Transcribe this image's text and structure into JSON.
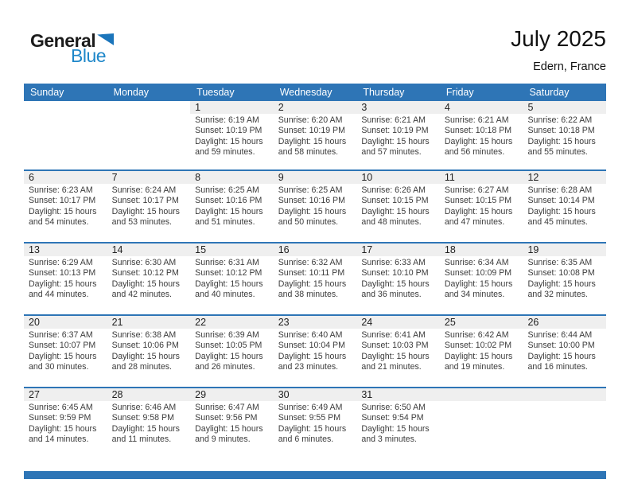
{
  "logo": {
    "part1": "General",
    "part2": "Blue"
  },
  "header": {
    "title": "July 2025",
    "location": "Edern, France"
  },
  "colors": {
    "header_blue": "#2e75b6",
    "logo_blue": "#1e87c9",
    "band_gray": "#efefef",
    "footer_blue": "#2e75b6"
  },
  "calendar": {
    "weekdays": [
      "Sunday",
      "Monday",
      "Tuesday",
      "Wednesday",
      "Thursday",
      "Friday",
      "Saturday"
    ],
    "weeks": [
      [
        {
          "day": "",
          "band": false,
          "lines": []
        },
        {
          "day": "",
          "band": false,
          "lines": []
        },
        {
          "day": "1",
          "band": true,
          "lines": [
            "Sunrise: 6:19 AM",
            "Sunset: 10:19 PM",
            "Daylight: 15 hours and 59 minutes."
          ]
        },
        {
          "day": "2",
          "band": true,
          "lines": [
            "Sunrise: 6:20 AM",
            "Sunset: 10:19 PM",
            "Daylight: 15 hours and 58 minutes."
          ]
        },
        {
          "day": "3",
          "band": true,
          "lines": [
            "Sunrise: 6:21 AM",
            "Sunset: 10:19 PM",
            "Daylight: 15 hours and 57 minutes."
          ]
        },
        {
          "day": "4",
          "band": true,
          "lines": [
            "Sunrise: 6:21 AM",
            "Sunset: 10:18 PM",
            "Daylight: 15 hours and 56 minutes."
          ]
        },
        {
          "day": "5",
          "band": true,
          "lines": [
            "Sunrise: 6:22 AM",
            "Sunset: 10:18 PM",
            "Daylight: 15 hours and 55 minutes."
          ]
        }
      ],
      [
        {
          "day": "6",
          "band": true,
          "lines": [
            "Sunrise: 6:23 AM",
            "Sunset: 10:17 PM",
            "Daylight: 15 hours and 54 minutes."
          ]
        },
        {
          "day": "7",
          "band": true,
          "lines": [
            "Sunrise: 6:24 AM",
            "Sunset: 10:17 PM",
            "Daylight: 15 hours and 53 minutes."
          ]
        },
        {
          "day": "8",
          "band": true,
          "lines": [
            "Sunrise: 6:25 AM",
            "Sunset: 10:16 PM",
            "Daylight: 15 hours and 51 minutes."
          ]
        },
        {
          "day": "9",
          "band": true,
          "lines": [
            "Sunrise: 6:25 AM",
            "Sunset: 10:16 PM",
            "Daylight: 15 hours and 50 minutes."
          ]
        },
        {
          "day": "10",
          "band": true,
          "lines": [
            "Sunrise: 6:26 AM",
            "Sunset: 10:15 PM",
            "Daylight: 15 hours and 48 minutes."
          ]
        },
        {
          "day": "11",
          "band": true,
          "lines": [
            "Sunrise: 6:27 AM",
            "Sunset: 10:15 PM",
            "Daylight: 15 hours and 47 minutes."
          ]
        },
        {
          "day": "12",
          "band": true,
          "lines": [
            "Sunrise: 6:28 AM",
            "Sunset: 10:14 PM",
            "Daylight: 15 hours and 45 minutes."
          ]
        }
      ],
      [
        {
          "day": "13",
          "band": true,
          "lines": [
            "Sunrise: 6:29 AM",
            "Sunset: 10:13 PM",
            "Daylight: 15 hours and 44 minutes."
          ]
        },
        {
          "day": "14",
          "band": true,
          "lines": [
            "Sunrise: 6:30 AM",
            "Sunset: 10:12 PM",
            "Daylight: 15 hours and 42 minutes."
          ]
        },
        {
          "day": "15",
          "band": true,
          "lines": [
            "Sunrise: 6:31 AM",
            "Sunset: 10:12 PM",
            "Daylight: 15 hours and 40 minutes."
          ]
        },
        {
          "day": "16",
          "band": true,
          "lines": [
            "Sunrise: 6:32 AM",
            "Sunset: 10:11 PM",
            "Daylight: 15 hours and 38 minutes."
          ]
        },
        {
          "day": "17",
          "band": true,
          "lines": [
            "Sunrise: 6:33 AM",
            "Sunset: 10:10 PM",
            "Daylight: 15 hours and 36 minutes."
          ]
        },
        {
          "day": "18",
          "band": true,
          "lines": [
            "Sunrise: 6:34 AM",
            "Sunset: 10:09 PM",
            "Daylight: 15 hours and 34 minutes."
          ]
        },
        {
          "day": "19",
          "band": true,
          "lines": [
            "Sunrise: 6:35 AM",
            "Sunset: 10:08 PM",
            "Daylight: 15 hours and 32 minutes."
          ]
        }
      ],
      [
        {
          "day": "20",
          "band": true,
          "lines": [
            "Sunrise: 6:37 AM",
            "Sunset: 10:07 PM",
            "Daylight: 15 hours and 30 minutes."
          ]
        },
        {
          "day": "21",
          "band": true,
          "lines": [
            "Sunrise: 6:38 AM",
            "Sunset: 10:06 PM",
            "Daylight: 15 hours and 28 minutes."
          ]
        },
        {
          "day": "22",
          "band": true,
          "lines": [
            "Sunrise: 6:39 AM",
            "Sunset: 10:05 PM",
            "Daylight: 15 hours and 26 minutes."
          ]
        },
        {
          "day": "23",
          "band": true,
          "lines": [
            "Sunrise: 6:40 AM",
            "Sunset: 10:04 PM",
            "Daylight: 15 hours and 23 minutes."
          ]
        },
        {
          "day": "24",
          "band": true,
          "lines": [
            "Sunrise: 6:41 AM",
            "Sunset: 10:03 PM",
            "Daylight: 15 hours and 21 minutes."
          ]
        },
        {
          "day": "25",
          "band": true,
          "lines": [
            "Sunrise: 6:42 AM",
            "Sunset: 10:02 PM",
            "Daylight: 15 hours and 19 minutes."
          ]
        },
        {
          "day": "26",
          "band": true,
          "lines": [
            "Sunrise: 6:44 AM",
            "Sunset: 10:00 PM",
            "Daylight: 15 hours and 16 minutes."
          ]
        }
      ],
      [
        {
          "day": "27",
          "band": true,
          "lines": [
            "Sunrise: 6:45 AM",
            "Sunset: 9:59 PM",
            "Daylight: 15 hours and 14 minutes."
          ]
        },
        {
          "day": "28",
          "band": true,
          "lines": [
            "Sunrise: 6:46 AM",
            "Sunset: 9:58 PM",
            "Daylight: 15 hours and 11 minutes."
          ]
        },
        {
          "day": "29",
          "band": true,
          "lines": [
            "Sunrise: 6:47 AM",
            "Sunset: 9:56 PM",
            "Daylight: 15 hours and 9 minutes."
          ]
        },
        {
          "day": "30",
          "band": true,
          "lines": [
            "Sunrise: 6:49 AM",
            "Sunset: 9:55 PM",
            "Daylight: 15 hours and 6 minutes."
          ]
        },
        {
          "day": "31",
          "band": true,
          "lines": [
            "Sunrise: 6:50 AM",
            "Sunset: 9:54 PM",
            "Daylight: 15 hours and 3 minutes."
          ]
        },
        {
          "day": "",
          "band": true,
          "lines": []
        },
        {
          "day": "",
          "band": true,
          "lines": []
        }
      ]
    ]
  }
}
